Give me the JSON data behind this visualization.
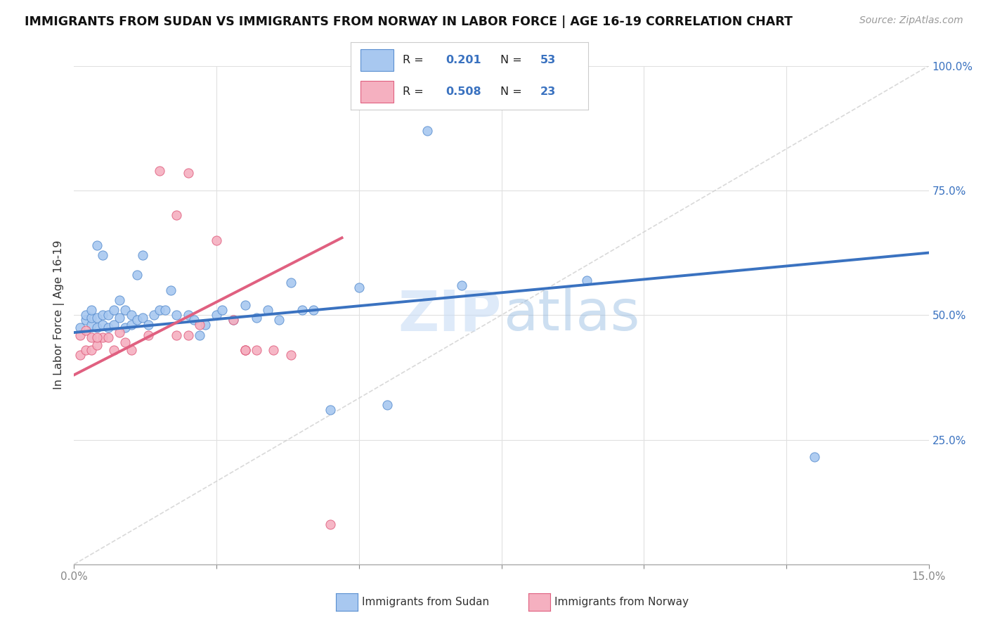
{
  "title": "IMMIGRANTS FROM SUDAN VS IMMIGRANTS FROM NORWAY IN LABOR FORCE | AGE 16-19 CORRELATION CHART",
  "source": "Source: ZipAtlas.com",
  "ylabel": "In Labor Force | Age 16-19",
  "xlim": [
    0.0,
    0.15
  ],
  "ylim": [
    0.0,
    1.0
  ],
  "sudan_color": "#A8C8F0",
  "norway_color": "#F5B0C0",
  "sudan_edge_color": "#5A8FD0",
  "norway_edge_color": "#E06080",
  "sudan_line_color": "#3A72C0",
  "norway_line_color": "#E06080",
  "diagonal_color": "#D0D0D0",
  "legend_sudan_R": "0.201",
  "legend_sudan_N": "53",
  "legend_norway_R": "0.508",
  "legend_norway_N": "23",
  "sudan_trend_x0": 0.0,
  "sudan_trend_y0": 0.465,
  "sudan_trend_x1": 0.15,
  "sudan_trend_y1": 0.625,
  "norway_trend_x0": 0.0,
  "norway_trend_y0": 0.38,
  "norway_trend_x1": 0.047,
  "norway_trend_y1": 0.655,
  "sudan_x": [
    0.001,
    0.002,
    0.002,
    0.003,
    0.003,
    0.003,
    0.004,
    0.004,
    0.004,
    0.005,
    0.005,
    0.005,
    0.006,
    0.006,
    0.007,
    0.007,
    0.008,
    0.008,
    0.009,
    0.009,
    0.01,
    0.01,
    0.011,
    0.011,
    0.012,
    0.012,
    0.013,
    0.014,
    0.015,
    0.016,
    0.017,
    0.018,
    0.02,
    0.021,
    0.022,
    0.023,
    0.025,
    0.026,
    0.028,
    0.03,
    0.032,
    0.034,
    0.036,
    0.038,
    0.04,
    0.042,
    0.045,
    0.05,
    0.055,
    0.062,
    0.068,
    0.09,
    0.13
  ],
  "sudan_y": [
    0.475,
    0.49,
    0.5,
    0.48,
    0.495,
    0.51,
    0.475,
    0.495,
    0.64,
    0.48,
    0.5,
    0.62,
    0.475,
    0.5,
    0.48,
    0.51,
    0.495,
    0.53,
    0.475,
    0.51,
    0.48,
    0.5,
    0.49,
    0.58,
    0.495,
    0.62,
    0.48,
    0.5,
    0.51,
    0.51,
    0.55,
    0.5,
    0.5,
    0.49,
    0.46,
    0.48,
    0.5,
    0.51,
    0.49,
    0.52,
    0.495,
    0.51,
    0.49,
    0.565,
    0.51,
    0.51,
    0.31,
    0.555,
    0.32,
    0.87,
    0.56,
    0.57,
    0.215
  ],
  "norway_x": [
    0.001,
    0.001,
    0.002,
    0.002,
    0.003,
    0.003,
    0.004,
    0.005,
    0.006,
    0.007,
    0.008,
    0.009,
    0.01,
    0.013,
    0.015,
    0.018,
    0.02,
    0.022,
    0.025,
    0.028,
    0.03,
    0.032,
    0.035
  ],
  "norway_y": [
    0.42,
    0.46,
    0.43,
    0.47,
    0.43,
    0.455,
    0.44,
    0.455,
    0.455,
    0.43,
    0.465,
    0.445,
    0.43,
    0.46,
    0.79,
    0.7,
    0.785,
    0.48,
    0.65,
    0.49,
    0.43,
    0.43,
    0.43
  ],
  "norway_extra_x": [
    0.004,
    0.018,
    0.02,
    0.03,
    0.03,
    0.038,
    0.045
  ],
  "norway_extra_y": [
    0.455,
    0.46,
    0.46,
    0.43,
    0.43,
    0.42,
    0.08
  ]
}
